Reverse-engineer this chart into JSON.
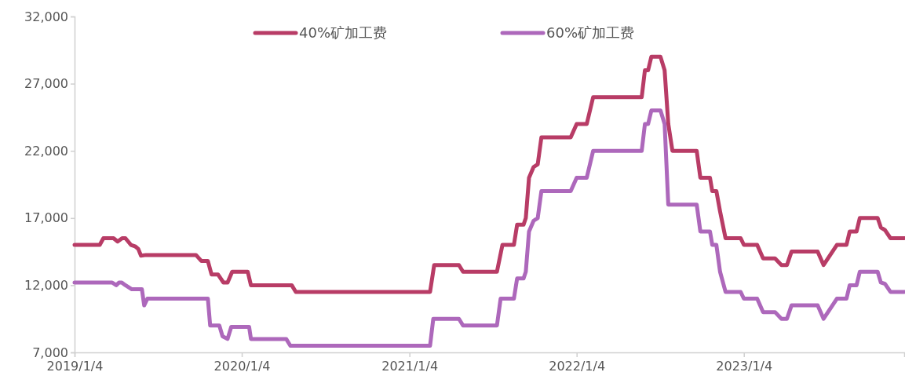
{
  "chart_data": {
    "type": "line",
    "xlim": [
      "2019-01-04",
      "2023-12-20"
    ],
    "xticks": [
      {
        "value": "2019-01-04",
        "label": "2019/1/4"
      },
      {
        "value": "2020-01-04",
        "label": "2020/1/4"
      },
      {
        "value": "2021-01-04",
        "label": "2021/1/4"
      },
      {
        "value": "2022-01-04",
        "label": "2022/1/4"
      },
      {
        "value": "2023-01-04",
        "label": "2023/1/4"
      }
    ],
    "ylim": [
      7000,
      32000
    ],
    "yticks": [
      {
        "value": 7000,
        "label": "7,000"
      },
      {
        "value": 12000,
        "label": "12,000"
      },
      {
        "value": 17000,
        "label": "17,000"
      },
      {
        "value": 22000,
        "label": "22,000"
      },
      {
        "value": 27000,
        "label": "27,000"
      },
      {
        "value": 32000,
        "label": "32,000"
      }
    ],
    "grid": false,
    "legend": "top",
    "marker": "none",
    "line_style": "solid",
    "series": [
      {
        "name": "40%矿加工费",
        "color": "#b83c66",
        "x": [
          "2019-01-04",
          "2019-02-28",
          "2019-03-08",
          "2019-03-30",
          "2019-04-08",
          "2019-04-18",
          "2019-04-25",
          "2019-05-07",
          "2019-05-16",
          "2019-05-23",
          "2019-05-29",
          "2019-06-09",
          "2019-09-26",
          "2019-10-08",
          "2019-10-22",
          "2019-10-30",
          "2019-11-13",
          "2019-11-25",
          "2019-12-04",
          "2019-12-14",
          "2020-01-17",
          "2020-01-24",
          "2020-04-22",
          "2020-05-01",
          "2021-02-18",
          "2021-02-27",
          "2021-04-22",
          "2021-05-01",
          "2021-07-14",
          "2021-07-26",
          "2021-08-20",
          "2021-08-27",
          "2021-09-10",
          "2021-09-15",
          "2021-09-22",
          "2021-10-02",
          "2021-10-11",
          "2021-10-19",
          "2021-12-22",
          "2022-01-04",
          "2022-01-26",
          "2022-02-09",
          "2022-05-26",
          "2022-06-02",
          "2022-06-09",
          "2022-06-16",
          "2022-07-06",
          "2022-07-15",
          "2022-07-23",
          "2022-08-01",
          "2022-09-23",
          "2022-10-01",
          "2022-10-22",
          "2022-10-27",
          "2022-11-05",
          "2022-11-13",
          "2022-11-25",
          "2022-12-28",
          "2023-01-04",
          "2023-02-02",
          "2023-02-15",
          "2023-03-13",
          "2023-03-27",
          "2023-04-08",
          "2023-04-18",
          "2023-06-14",
          "2023-06-27",
          "2023-07-26",
          "2023-08-16",
          "2023-08-23",
          "2023-09-07",
          "2023-09-14",
          "2023-10-23",
          "2023-10-30",
          "2023-11-08",
          "2023-11-20",
          "2023-12-20"
        ],
        "values": [
          15000,
          15000,
          15500,
          15500,
          15250,
          15500,
          15500,
          15000,
          14900,
          14700,
          14200,
          14250,
          14250,
          13800,
          13800,
          12800,
          12800,
          12200,
          12200,
          13000,
          13000,
          12000,
          12000,
          11500,
          11500,
          13500,
          13500,
          13000,
          13000,
          15000,
          15000,
          16500,
          16500,
          17000,
          20000,
          20800,
          21000,
          23000,
          23000,
          24000,
          24000,
          26000,
          26000,
          28000,
          28000,
          29000,
          29000,
          28000,
          24000,
          22000,
          22000,
          20000,
          20000,
          19000,
          19000,
          17500,
          15500,
          15500,
          15000,
          15000,
          14000,
          14000,
          13500,
          13500,
          14500,
          14500,
          13500,
          15000,
          15000,
          16000,
          16000,
          17000,
          17000,
          16300,
          16100,
          15500,
          15500
        ]
      },
      {
        "name": "60%矿加工费",
        "color": "#ad68bb",
        "x": [
          "2019-01-04",
          "2019-03-27",
          "2019-04-05",
          "2019-04-11",
          "2019-04-17",
          "2019-04-25",
          "2019-05-09",
          "2019-05-31",
          "2019-06-05",
          "2019-06-12",
          "2019-10-22",
          "2019-10-27",
          "2019-11-16",
          "2019-11-23",
          "2019-12-04",
          "2019-12-12",
          "2020-01-20",
          "2020-01-24",
          "2020-04-10",
          "2020-04-19",
          "2021-02-18",
          "2021-02-25",
          "2021-04-22",
          "2021-05-01",
          "2021-07-14",
          "2021-07-22",
          "2021-08-20",
          "2021-08-27",
          "2021-09-10",
          "2021-09-15",
          "2021-09-22",
          "2021-10-02",
          "2021-10-11",
          "2021-10-19",
          "2021-12-22",
          "2022-01-04",
          "2022-01-26",
          "2022-02-09",
          "2022-05-26",
          "2022-06-02",
          "2022-06-09",
          "2022-06-16",
          "2022-07-06",
          "2022-07-15",
          "2022-07-23",
          "2022-09-23",
          "2022-10-01",
          "2022-10-22",
          "2022-10-27",
          "2022-11-05",
          "2022-11-13",
          "2022-11-25",
          "2022-12-28",
          "2023-01-04",
          "2023-02-02",
          "2023-02-15",
          "2023-03-13",
          "2023-03-27",
          "2023-04-08",
          "2023-04-18",
          "2023-06-14",
          "2023-06-27",
          "2023-07-26",
          "2023-08-16",
          "2023-08-23",
          "2023-09-07",
          "2023-09-14",
          "2023-10-23",
          "2023-10-30",
          "2023-11-08",
          "2023-11-20",
          "2023-12-20"
        ],
        "values": [
          12200,
          12200,
          12000,
          12200,
          12200,
          12000,
          11700,
          11700,
          10500,
          11000,
          11000,
          9000,
          9000,
          8200,
          8000,
          8900,
          8900,
          8000,
          8000,
          7500,
          7500,
          9500,
          9500,
          9000,
          9000,
          11000,
          11000,
          12500,
          12500,
          13000,
          16000,
          16800,
          17000,
          19000,
          19000,
          20000,
          20000,
          22000,
          22000,
          24000,
          24000,
          25000,
          25000,
          24000,
          18000,
          18000,
          16000,
          16000,
          15000,
          15000,
          13000,
          11500,
          11500,
          11000,
          11000,
          10000,
          10000,
          9500,
          9500,
          10500,
          10500,
          9500,
          11000,
          11000,
          12000,
          12000,
          13000,
          13000,
          12200,
          12100,
          11500,
          11500
        ]
      }
    ]
  }
}
